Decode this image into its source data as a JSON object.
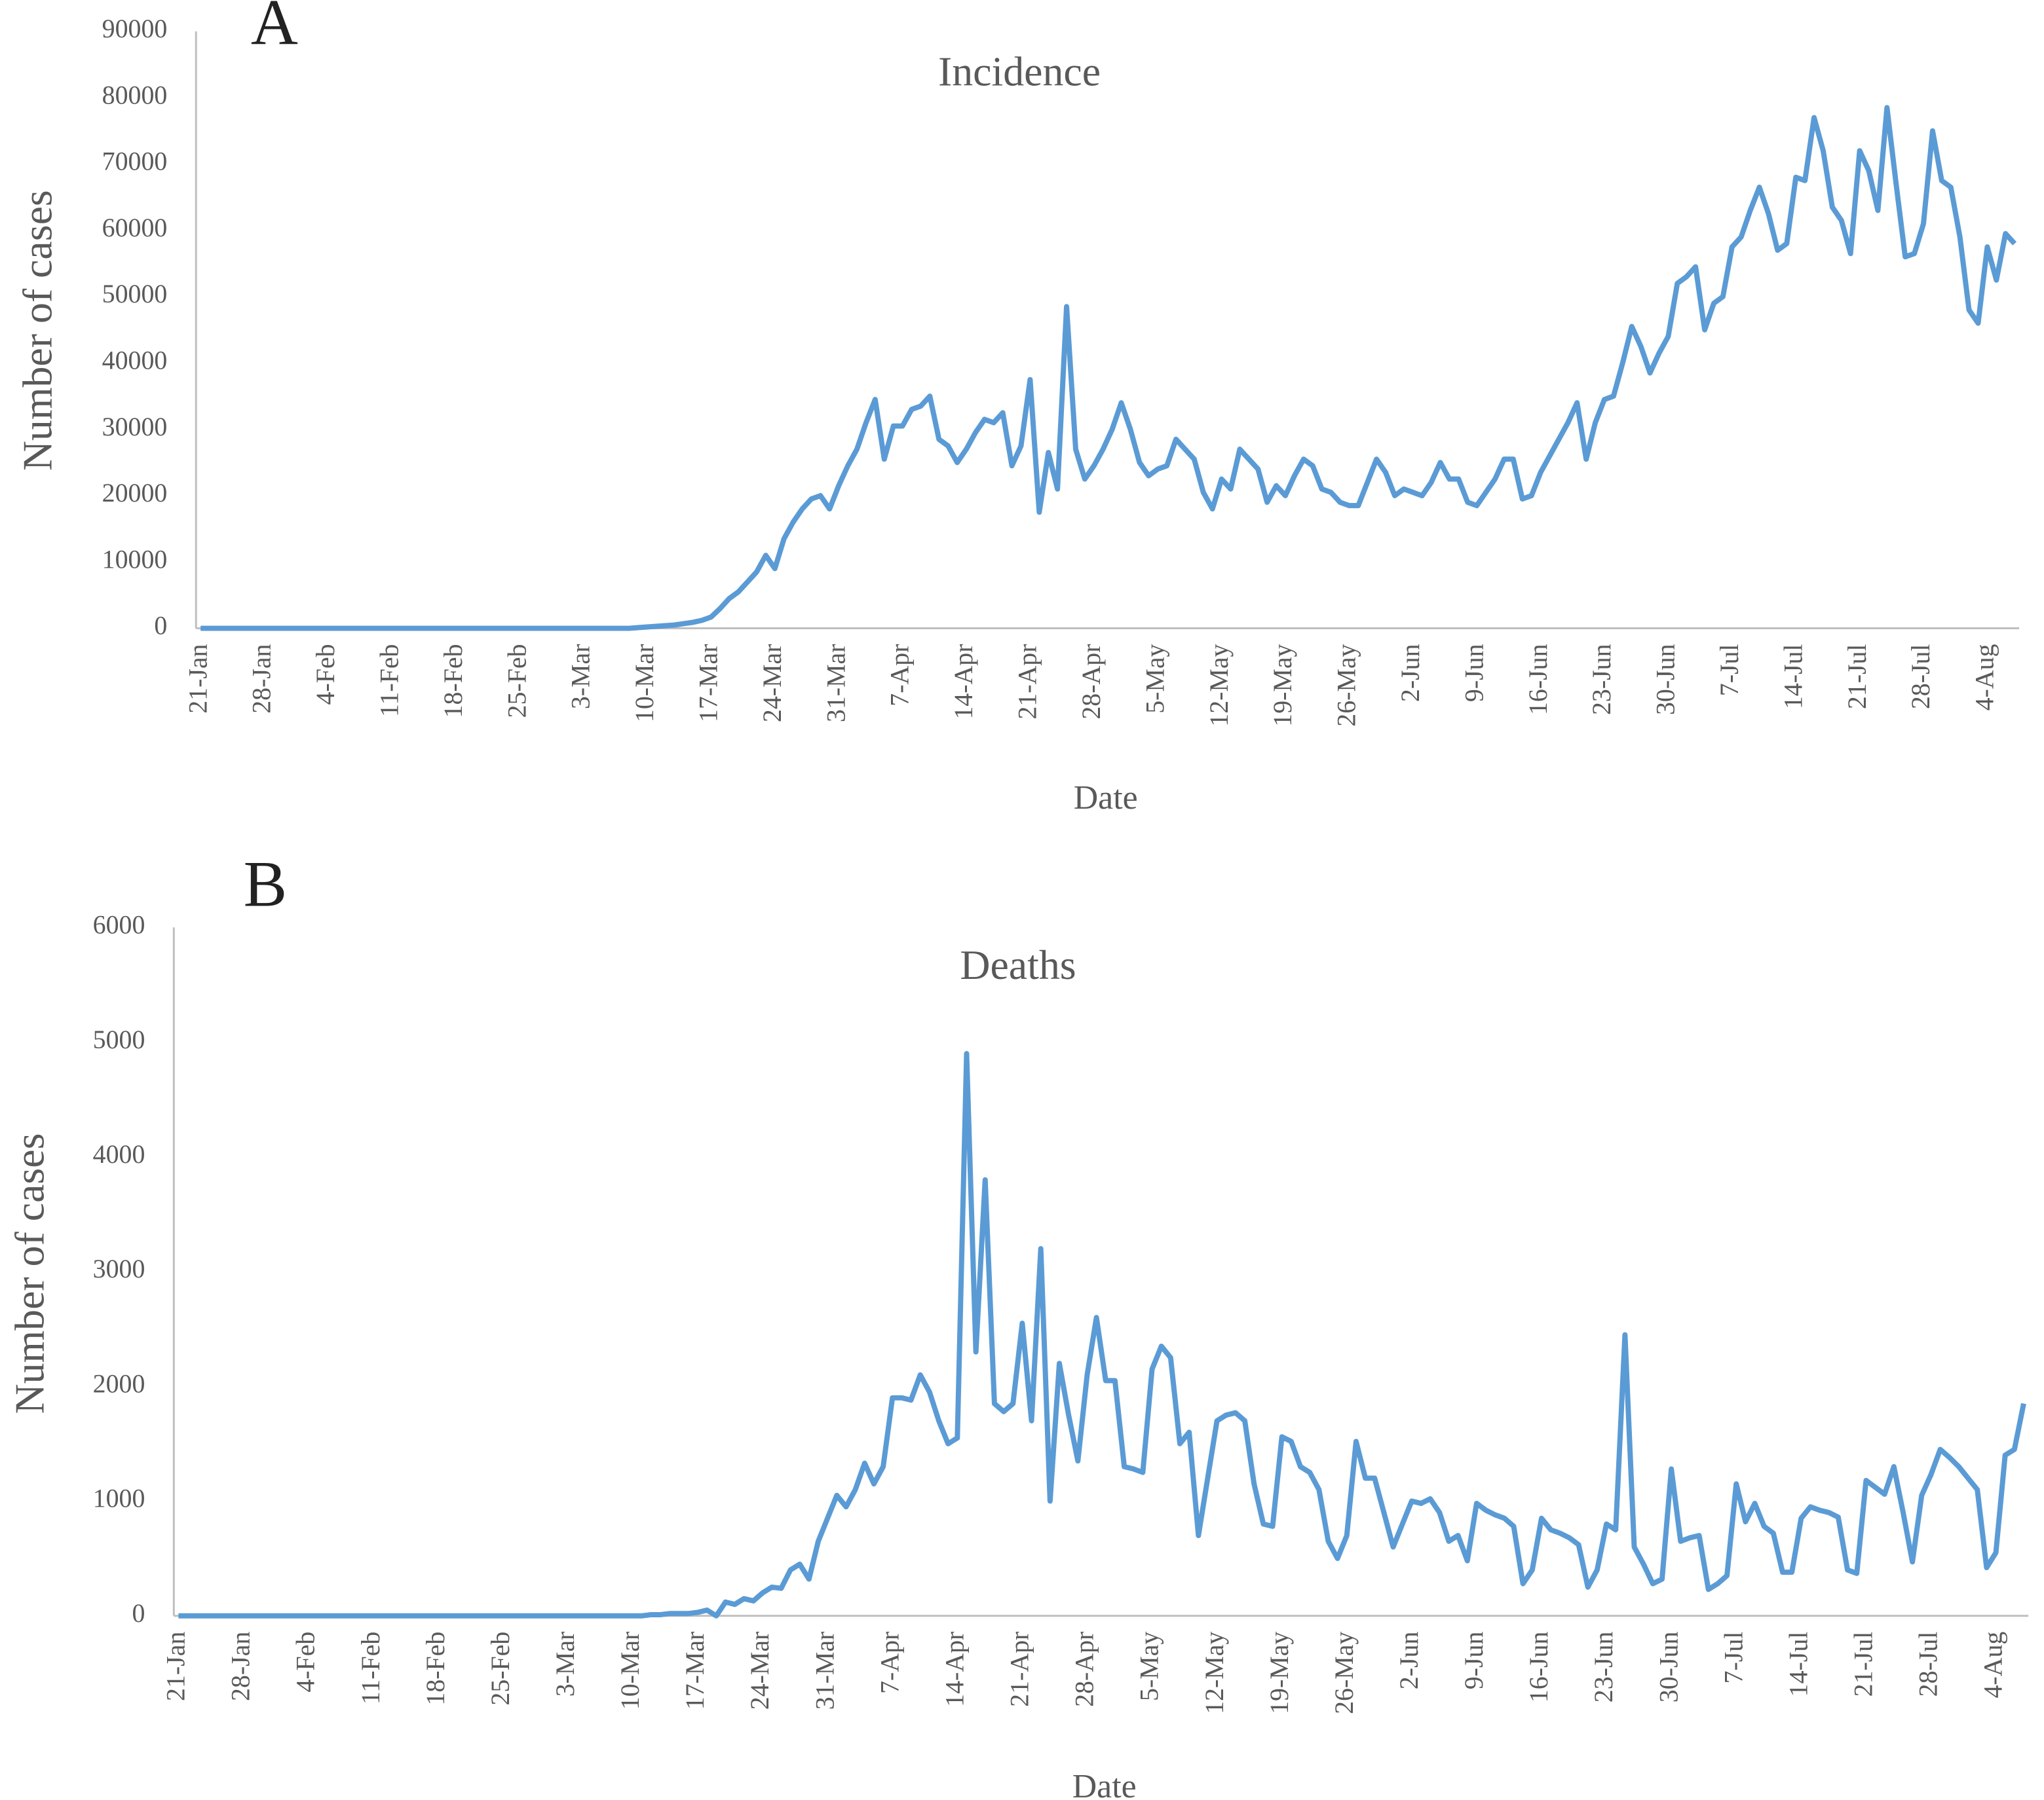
{
  "chart_data": [
    {
      "type": "line",
      "panel": "A",
      "title": "Incidence",
      "xlabel": "Date",
      "ylabel": "Number of cases",
      "color": "#5b9bd5",
      "categories": [
        "21-Jan",
        null,
        null,
        null,
        null,
        null,
        null,
        "28-Jan",
        null,
        null,
        null,
        null,
        null,
        null,
        "4-Feb",
        null,
        null,
        null,
        null,
        null,
        null,
        "11-Feb",
        null,
        null,
        null,
        null,
        null,
        null,
        "18-Feb",
        null,
        null,
        null,
        null,
        null,
        null,
        "25-Feb",
        null,
        null,
        null,
        null,
        null,
        null,
        "3-Mar",
        null,
        null,
        null,
        null,
        null,
        null,
        "10-Mar",
        null,
        null,
        null,
        null,
        null,
        null,
        "17-Mar",
        null,
        null,
        null,
        null,
        null,
        null,
        "24-Mar",
        null,
        null,
        null,
        null,
        null,
        null,
        "31-Mar",
        null,
        null,
        null,
        null,
        null,
        null,
        "7-Apr",
        null,
        null,
        null,
        null,
        null,
        null,
        "14-Apr",
        null,
        null,
        null,
        null,
        null,
        null,
        "21-Apr",
        null,
        null,
        null,
        null,
        null,
        null,
        "28-Apr",
        null,
        null,
        null,
        null,
        null,
        null,
        "5-May",
        null,
        null,
        null,
        null,
        null,
        null,
        "12-May",
        null,
        null,
        null,
        null,
        null,
        null,
        "19-May",
        null,
        null,
        null,
        null,
        null,
        null,
        "26-May",
        null,
        null,
        null,
        null,
        null,
        null,
        "2-Jun",
        null,
        null,
        null,
        null,
        null,
        null,
        "9-Jun",
        null,
        null,
        null,
        null,
        null,
        null,
        "16-Jun",
        null,
        null,
        null,
        null,
        null,
        null,
        "23-Jun",
        null,
        null,
        null,
        null,
        null,
        null,
        "30-Jun",
        null,
        null,
        null,
        null,
        null,
        null,
        "7-Jul",
        null,
        null,
        null,
        null,
        null,
        null,
        "14-Jul",
        null,
        null,
        null,
        null,
        null,
        null,
        "21-Jul",
        null,
        null,
        null,
        null,
        null,
        null,
        "28-Jul",
        null,
        null,
        null,
        null,
        null,
        null,
        "4-Aug",
        null,
        null,
        null
      ],
      "values": [
        0,
        0,
        0,
        0,
        0,
        0,
        0,
        0,
        0,
        0,
        0,
        0,
        0,
        0,
        0,
        0,
        0,
        0,
        0,
        0,
        0,
        0,
        0,
        0,
        0,
        0,
        0,
        0,
        0,
        0,
        0,
        0,
        0,
        0,
        0,
        0,
        0,
        0,
        0,
        0,
        0,
        0,
        0,
        0,
        0,
        0,
        0,
        0,
        100,
        200,
        300,
        400,
        500,
        700,
        900,
        1200,
        1700,
        3000,
        4500,
        5500,
        7000,
        8500,
        11000,
        9000,
        13500,
        16000,
        18000,
        19500,
        20000,
        18000,
        21500,
        24500,
        27000,
        31000,
        34500,
        25500,
        30500,
        30500,
        33000,
        33500,
        35000,
        28500,
        27500,
        25000,
        27000,
        29500,
        31500,
        31000,
        32500,
        24500,
        27500,
        37500,
        17500,
        26500,
        21000,
        48500,
        27000,
        22500,
        24500,
        27000,
        30000,
        34000,
        30000,
        25000,
        23000,
        24000,
        24500,
        28500,
        27000,
        25500,
        20500,
        18000,
        22500,
        21000,
        27000,
        25500,
        24000,
        19000,
        21500,
        20000,
        23000,
        25500,
        24500,
        21000,
        20500,
        19000,
        18500,
        18500,
        22000,
        25500,
        23500,
        20000,
        21000,
        20500,
        20000,
        22000,
        25000,
        22500,
        22500,
        19000,
        18500,
        20500,
        22500,
        25500,
        25500,
        19500,
        20000,
        23500,
        26000,
        28500,
        31000,
        34000,
        25500,
        31000,
        34500,
        35000,
        40000,
        45500,
        42500,
        38500,
        41500,
        44000,
        52000,
        53000,
        54500,
        45000,
        49000,
        50000,
        57500,
        59000,
        63000,
        66500,
        62500,
        57000,
        58000,
        68000,
        67500,
        77000,
        72000,
        63500,
        61500,
        56500,
        72000,
        69000,
        63000,
        78500,
        67000,
        56000,
        56500,
        61000,
        75000,
        67500,
        66500,
        59000,
        48000,
        46000,
        57500,
        52500,
        59500,
        58000
      ],
      "ylim": [
        0,
        90000
      ],
      "yticks": [
        0,
        10000,
        20000,
        30000,
        40000,
        50000,
        60000,
        70000,
        80000,
        90000
      ]
    },
    {
      "type": "line",
      "panel": "B",
      "title": "Deaths",
      "xlabel": "Date",
      "ylabel": "Number of cases",
      "color": "#5b9bd5",
      "categories": [
        "21-Jan",
        null,
        null,
        null,
        null,
        null,
        null,
        "28-Jan",
        null,
        null,
        null,
        null,
        null,
        null,
        "4-Feb",
        null,
        null,
        null,
        null,
        null,
        null,
        "11-Feb",
        null,
        null,
        null,
        null,
        null,
        null,
        "18-Feb",
        null,
        null,
        null,
        null,
        null,
        null,
        "25-Feb",
        null,
        null,
        null,
        null,
        null,
        null,
        "3-Mar",
        null,
        null,
        null,
        null,
        null,
        null,
        "10-Mar",
        null,
        null,
        null,
        null,
        null,
        null,
        "17-Mar",
        null,
        null,
        null,
        null,
        null,
        null,
        "24-Mar",
        null,
        null,
        null,
        null,
        null,
        null,
        "31-Mar",
        null,
        null,
        null,
        null,
        null,
        null,
        "7-Apr",
        null,
        null,
        null,
        null,
        null,
        null,
        "14-Apr",
        null,
        null,
        null,
        null,
        null,
        null,
        "21-Apr",
        null,
        null,
        null,
        null,
        null,
        null,
        "28-Apr",
        null,
        null,
        null,
        null,
        null,
        null,
        "5-May",
        null,
        null,
        null,
        null,
        null,
        null,
        "12-May",
        null,
        null,
        null,
        null,
        null,
        null,
        "19-May",
        null,
        null,
        null,
        null,
        null,
        null,
        "26-May",
        null,
        null,
        null,
        null,
        null,
        null,
        "2-Jun",
        null,
        null,
        null,
        null,
        null,
        null,
        "9-Jun",
        null,
        null,
        null,
        null,
        null,
        null,
        "16-Jun",
        null,
        null,
        null,
        null,
        null,
        null,
        "23-Jun",
        null,
        null,
        null,
        null,
        null,
        null,
        "30-Jun",
        null,
        null,
        null,
        null,
        null,
        null,
        "7-Jul",
        null,
        null,
        null,
        null,
        null,
        null,
        "14-Jul",
        null,
        null,
        null,
        null,
        null,
        null,
        "21-Jul",
        null,
        null,
        null,
        null,
        null,
        null,
        "28-Jul",
        null,
        null,
        null,
        null,
        null,
        null,
        "4-Aug",
        null,
        null,
        null
      ],
      "values": [
        0,
        0,
        0,
        0,
        0,
        0,
        0,
        0,
        0,
        0,
        0,
        0,
        0,
        0,
        0,
        0,
        0,
        0,
        0,
        0,
        0,
        0,
        0,
        0,
        0,
        0,
        0,
        0,
        0,
        0,
        0,
        0,
        0,
        0,
        0,
        0,
        0,
        0,
        0,
        0,
        0,
        0,
        0,
        0,
        0,
        0,
        0,
        0,
        0,
        0,
        0,
        10,
        10,
        20,
        20,
        20,
        30,
        50,
        0,
        120,
        100,
        150,
        130,
        200,
        250,
        240,
        400,
        450,
        320,
        650,
        850,
        1050,
        950,
        1100,
        1330,
        1150,
        1300,
        1900,
        1900,
        1880,
        2100,
        1950,
        1700,
        1500,
        1550,
        4900,
        2300,
        3800,
        1850,
        1780,
        1850,
        2550,
        1700,
        3200,
        1000,
        2200,
        1750,
        1350,
        2100,
        2600,
        2050,
        2050,
        1300,
        1280,
        1250,
        2150,
        2350,
        2250,
        1500,
        1600,
        700,
        1200,
        1700,
        1750,
        1770,
        1700,
        1150,
        800,
        780,
        1560,
        1520,
        1300,
        1250,
        1100,
        650,
        500,
        700,
        1520,
        1200,
        1200,
        900,
        600,
        800,
        1000,
        980,
        1020,
        900,
        650,
        700,
        480,
        980,
        920,
        880,
        850,
        780,
        280,
        400,
        850,
        750,
        720,
        680,
        620,
        250,
        400,
        800,
        750,
        2450,
        600,
        450,
        280,
        320,
        1280,
        650,
        680,
        700,
        230,
        280,
        350,
        1150,
        820,
        980,
        780,
        720,
        380,
        380,
        850,
        950,
        920,
        900,
        860,
        400,
        370,
        1180,
        1120,
        1060,
        1300,
        900,
        470,
        1050,
        1230,
        1450,
        1380,
        1300,
        1200,
        1100,
        420,
        550,
        1400,
        1450,
        1850
      ],
      "ylim": [
        0,
        6000
      ],
      "yticks": [
        0,
        1000,
        2000,
        3000,
        4000,
        5000,
        6000
      ]
    }
  ]
}
